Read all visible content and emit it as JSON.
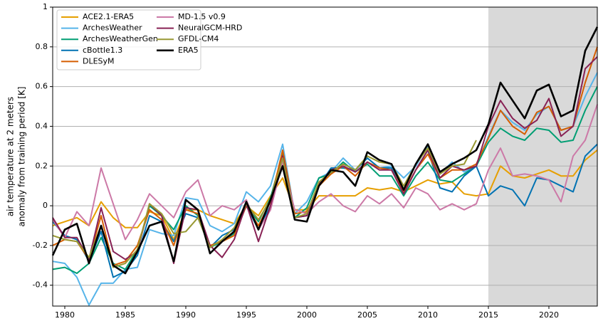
{
  "chart_data": {
    "type": "line",
    "ylabel": [
      "air temperature at 2 meters",
      "anomaly from training period [K]"
    ],
    "x": [
      1979,
      1980,
      1981,
      1982,
      1983,
      1984,
      1985,
      1986,
      1987,
      1988,
      1989,
      1990,
      1991,
      1992,
      1993,
      1994,
      1995,
      1996,
      1997,
      1998,
      1999,
      2000,
      2001,
      2002,
      2003,
      2004,
      2005,
      2006,
      2007,
      2008,
      2009,
      2010,
      2011,
      2012,
      2013,
      2014,
      2015,
      2016,
      2017,
      2018,
      2019,
      2020,
      2021,
      2022,
      2023,
      2024
    ],
    "xlim": [
      1979,
      2024
    ],
    "xticks": [
      1980,
      1985,
      1990,
      1995,
      2000,
      2005,
      2010,
      2015,
      2020
    ],
    "ylim": [
      -0.505,
      1
    ],
    "yticks": [
      -0.4,
      -0.2,
      0,
      0.2,
      0.4,
      0.6,
      0.8,
      1
    ],
    "grid": true,
    "legend": "upper-left",
    "shaded_region": [
      2015,
      2024
    ],
    "shade_color": "#d9d9d9",
    "series": [
      {
        "name": "ACE2.1-ERA5",
        "color": "#e69f00",
        "values": [
          -0.1,
          -0.08,
          -0.06,
          -0.1,
          0.02,
          -0.06,
          -0.11,
          -0.11,
          -0.03,
          -0.05,
          -0.17,
          -0.02,
          -0.02,
          -0.05,
          -0.07,
          -0.09,
          0.0,
          -0.05,
          0.05,
          0.14,
          -0.02,
          -0.02,
          0.05,
          0.05,
          0.05,
          0.05,
          0.09,
          0.08,
          0.09,
          0.07,
          0.1,
          0.13,
          0.11,
          0.12,
          0.06,
          0.05,
          0.06,
          0.2,
          0.15,
          0.14,
          0.16,
          0.18,
          0.15,
          0.15,
          0.23,
          0.28
        ]
      },
      {
        "name": "ArchesWeather",
        "color": "#56b4e9",
        "values": [
          -0.28,
          -0.29,
          -0.36,
          -0.5,
          -0.39,
          -0.39,
          -0.32,
          -0.31,
          -0.12,
          -0.14,
          -0.15,
          0.04,
          0.03,
          -0.1,
          -0.13,
          -0.09,
          0.07,
          0.02,
          0.1,
          0.31,
          -0.04,
          0.02,
          0.14,
          0.17,
          0.24,
          0.18,
          0.24,
          0.19,
          0.2,
          0.14,
          0.2,
          0.3,
          0.16,
          0.22,
          0.17,
          0.2,
          0.35,
          0.48,
          0.42,
          0.38,
          0.46,
          0.5,
          0.38,
          0.4,
          0.55,
          0.67
        ]
      },
      {
        "name": "ArchesWeatherGen",
        "color": "#009e73",
        "values": [
          -0.32,
          -0.31,
          -0.34,
          -0.29,
          -0.16,
          -0.29,
          -0.32,
          -0.22,
          0.0,
          -0.05,
          -0.12,
          0.0,
          -0.05,
          -0.21,
          -0.18,
          -0.14,
          0.0,
          -0.08,
          0.04,
          0.26,
          -0.06,
          -0.01,
          0.14,
          0.16,
          0.22,
          0.17,
          0.21,
          0.15,
          0.15,
          0.05,
          0.15,
          0.22,
          0.13,
          0.12,
          0.16,
          0.2,
          0.32,
          0.39,
          0.35,
          0.33,
          0.39,
          0.38,
          0.32,
          0.33,
          0.48,
          0.6
        ]
      },
      {
        "name": "cBottle1.3",
        "color": "#0072b2",
        "values": [
          -0.08,
          -0.15,
          -0.17,
          -0.28,
          -0.13,
          -0.36,
          -0.33,
          -0.25,
          -0.05,
          -0.08,
          -0.18,
          -0.04,
          -0.06,
          -0.21,
          -0.15,
          -0.12,
          0.0,
          -0.12,
          0.0,
          0.25,
          -0.06,
          -0.05,
          0.1,
          0.19,
          0.19,
          0.18,
          0.24,
          0.19,
          0.19,
          0.06,
          0.18,
          0.28,
          0.09,
          0.07,
          0.15,
          0.2,
          0.05,
          0.1,
          0.08,
          0.0,
          0.14,
          0.13,
          0.1,
          0.07,
          0.25,
          0.31
        ]
      },
      {
        "name": "DLESyM",
        "color": "#d55e00",
        "values": [
          -0.2,
          -0.17,
          -0.18,
          -0.27,
          -0.05,
          -0.3,
          -0.28,
          -0.2,
          -0.02,
          -0.07,
          -0.2,
          -0.02,
          -0.04,
          -0.2,
          -0.18,
          -0.15,
          0.0,
          -0.1,
          0.02,
          0.28,
          -0.04,
          -0.03,
          0.1,
          0.16,
          0.2,
          0.15,
          0.22,
          0.19,
          0.18,
          0.07,
          0.18,
          0.26,
          0.14,
          0.18,
          0.18,
          0.21,
          0.34,
          0.48,
          0.4,
          0.36,
          0.47,
          0.5,
          0.38,
          0.4,
          0.62,
          0.8
        ]
      },
      {
        "name": "MD-1.5 v0.9",
        "color": "#cc79a7",
        "values": [
          -0.07,
          -0.16,
          -0.03,
          -0.1,
          0.19,
          0.01,
          -0.17,
          -0.07,
          0.06,
          0.0,
          -0.06,
          0.07,
          0.13,
          -0.05,
          0.0,
          -0.02,
          0.03,
          -0.12,
          -0.02,
          0.22,
          -0.02,
          -0.04,
          0.02,
          0.06,
          0.0,
          -0.03,
          0.05,
          0.01,
          0.06,
          -0.01,
          0.09,
          0.06,
          -0.02,
          0.01,
          -0.02,
          0.01,
          0.18,
          0.29,
          0.15,
          0.16,
          0.15,
          0.13,
          0.02,
          0.25,
          0.33,
          0.51
        ]
      },
      {
        "name": "NeuralGCM-HRD",
        "color": "#882255",
        "values": [
          -0.06,
          -0.16,
          -0.16,
          -0.27,
          -0.01,
          -0.23,
          -0.27,
          -0.23,
          0.01,
          -0.05,
          -0.29,
          -0.01,
          -0.02,
          -0.2,
          -0.26,
          -0.17,
          0.01,
          -0.18,
          0.0,
          0.25,
          -0.06,
          -0.05,
          0.11,
          0.18,
          0.2,
          0.17,
          0.22,
          0.18,
          0.18,
          0.06,
          0.18,
          0.28,
          0.14,
          0.2,
          0.18,
          0.2,
          0.4,
          0.53,
          0.44,
          0.39,
          0.43,
          0.54,
          0.35,
          0.4,
          0.69,
          0.75
        ]
      },
      {
        "name": "GFDL-CM4",
        "color": "#999933",
        "values": [
          -0.15,
          -0.17,
          -0.18,
          -0.26,
          -0.1,
          -0.31,
          -0.29,
          -0.22,
          0.01,
          -0.04,
          -0.14,
          -0.13,
          -0.06,
          -0.21,
          -0.17,
          -0.11,
          0.01,
          -0.07,
          0.03,
          0.24,
          -0.06,
          -0.04,
          0.12,
          0.17,
          0.21,
          0.18,
          0.25,
          0.22,
          0.21,
          0.1,
          0.21,
          0.29,
          0.16,
          0.2,
          0.21,
          0.33,
          null,
          null,
          null,
          null,
          null,
          null,
          null,
          null,
          null,
          null
        ]
      },
      {
        "name": "ERA5",
        "color": "#000000",
        "values": [
          -0.25,
          -0.12,
          -0.09,
          -0.29,
          -0.1,
          -0.3,
          -0.34,
          -0.23,
          -0.1,
          -0.08,
          -0.28,
          0.03,
          -0.02,
          -0.24,
          -0.18,
          -0.13,
          0.02,
          -0.12,
          0.03,
          0.2,
          -0.07,
          -0.08,
          0.1,
          0.18,
          0.17,
          0.1,
          0.27,
          0.23,
          0.21,
          0.08,
          0.21,
          0.31,
          0.17,
          0.21,
          0.24,
          0.28,
          0.41,
          0.62,
          0.53,
          0.44,
          0.58,
          0.61,
          0.45,
          0.48,
          0.78,
          0.9
        ]
      }
    ]
  }
}
